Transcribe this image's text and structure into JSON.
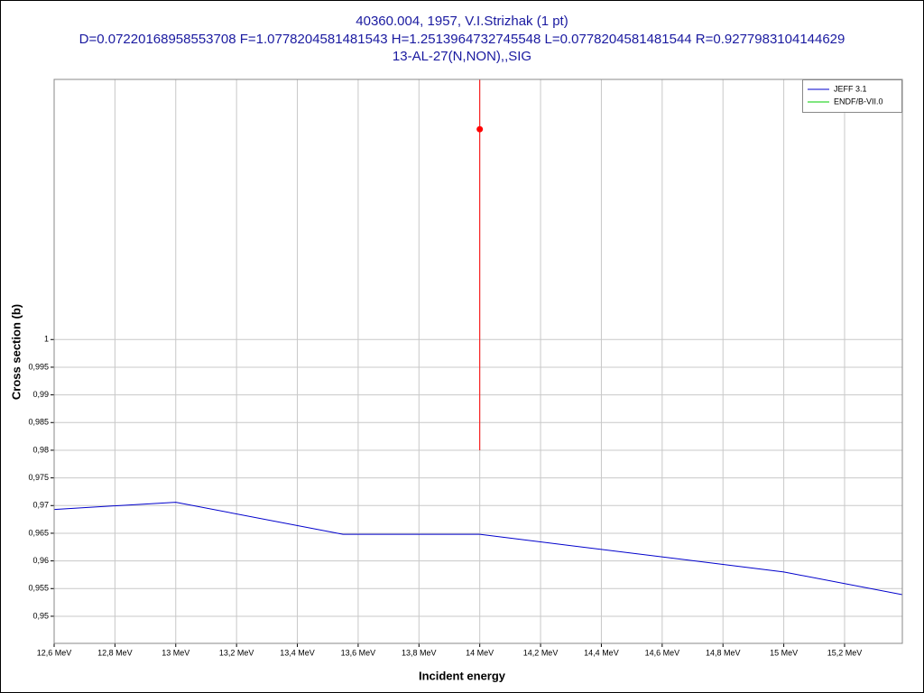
{
  "chart_data": {
    "type": "line",
    "title": "40360.004, 1957, V.I.Strizhak (1 pt)",
    "subtitle": "D=0.07220168958553708 F=1.0778204581481543 H=1.2513964732745548 L=0.0778204581481544 R=0.9277983104144629",
    "reaction": "13-AL-27(N,NON),,SIG",
    "x_label": "Incident energy",
    "y_label": "Cross section (b)",
    "xlim": [
      12.6,
      15.39
    ],
    "ylim": [
      0.9451,
      1.047
    ],
    "xticks": [
      {
        "value": 12.6,
        "label": "12,6 MeV"
      },
      {
        "value": 12.8,
        "label": "12,8 MeV"
      },
      {
        "value": 13.0,
        "label": "13 MeV"
      },
      {
        "value": 13.2,
        "label": "13,2 MeV"
      },
      {
        "value": 13.4,
        "label": "13,4 MeV"
      },
      {
        "value": 13.6,
        "label": "13,6 MeV"
      },
      {
        "value": 13.8,
        "label": "13,8 MeV"
      },
      {
        "value": 14.0,
        "label": "14 MeV"
      },
      {
        "value": 14.2,
        "label": "14,2 MeV"
      },
      {
        "value": 14.4,
        "label": "14,4 MeV"
      },
      {
        "value": 14.6,
        "label": "14,6 MeV"
      },
      {
        "value": 14.8,
        "label": "14,8 MeV"
      },
      {
        "value": 15.0,
        "label": "15 MeV"
      },
      {
        "value": 15.2,
        "label": "15,2 MeV"
      }
    ],
    "yticks": [
      {
        "value": 0.95,
        "label": "0,95"
      },
      {
        "value": 0.955,
        "label": "0,955"
      },
      {
        "value": 0.96,
        "label": "0,96"
      },
      {
        "value": 0.965,
        "label": "0,965"
      },
      {
        "value": 0.97,
        "label": "0,97"
      },
      {
        "value": 0.975,
        "label": "0,975"
      },
      {
        "value": 0.98,
        "label": "0,98"
      },
      {
        "value": 0.985,
        "label": "0,985"
      },
      {
        "value": 0.99,
        "label": "0,99"
      },
      {
        "value": 0.995,
        "label": "0,995"
      },
      1
    ],
    "grid": true,
    "legend": "top-right",
    "series": [
      {
        "name": "JEFF 3.1",
        "color": "#0000cc",
        "x": [
          12.6,
          13.0,
          13.55,
          14.0,
          15.0,
          15.39
        ],
        "values": [
          0.9693,
          0.9706,
          0.9648,
          0.9648,
          0.958,
          0.9539
        ]
      },
      {
        "name": "ENDF/B-VII.0",
        "color": "#00cc00",
        "x": [],
        "values": []
      }
    ],
    "points": {
      "color": "#ff0000",
      "x": [
        14.0
      ],
      "values": [
        1.038
      ],
      "errors": [
        0.058
      ]
    }
  }
}
